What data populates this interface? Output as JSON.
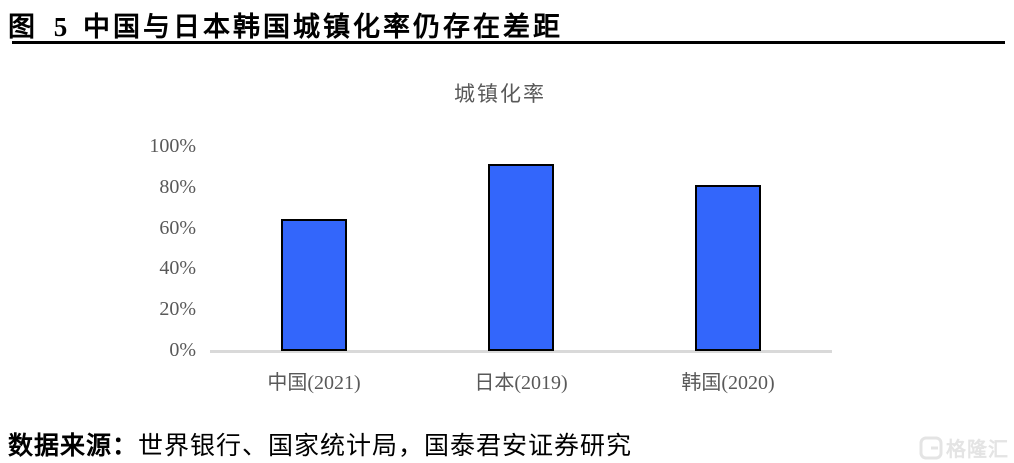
{
  "header": {
    "figure_label": "图 5",
    "figure_title": "中国与日本韩国城镇化率仍存在差距"
  },
  "footer": {
    "source_label": "数据来源：",
    "source_text": "世界银行、国家统计局，国泰君安证券研究"
  },
  "watermark": {
    "brand": "格隆汇"
  },
  "chart_data": {
    "type": "bar",
    "title": "城镇化率",
    "categories": [
      "中国(2021)",
      "日本(2019)",
      "韩国(2020)"
    ],
    "values": [
      64.7,
      91.7,
      81.4
    ],
    "unit": "%",
    "xlabel": "",
    "ylabel": "",
    "ylim": [
      0,
      100
    ],
    "ytick_values": [
      0,
      20,
      40,
      60,
      80,
      100
    ],
    "ytick_labels": [
      "0%",
      "20%",
      "40%",
      "60%",
      "80%",
      "100%"
    ],
    "grid": false,
    "legend": false,
    "colors": {
      "bar_fill": "#3366FB",
      "bar_border": "#000000",
      "axis_line": "#D9D9D9",
      "tick_text": "#595959",
      "title_text": "#595959"
    }
  }
}
